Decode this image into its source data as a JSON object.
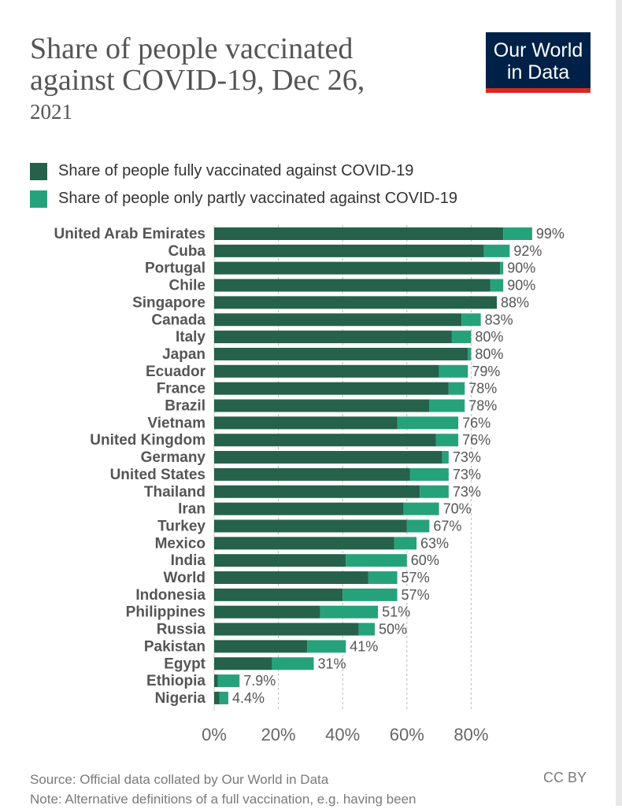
{
  "header": {
    "title_line1": "Share of people vaccinated",
    "title_line2": "against COVID-19, Dec 26,",
    "title_line3": "2021"
  },
  "logo": {
    "line1": "Our World",
    "line2": "in Data"
  },
  "colors": {
    "fully": "#25614b",
    "partly": "#26a27b",
    "logo_bg": "#002147",
    "logo_accent": "#d42b21"
  },
  "legend": [
    {
      "label": "Share of people fully vaccinated against COVID-19",
      "color": "#25614b"
    },
    {
      "label": "Share of people only partly vaccinated against COVID-19",
      "color": "#26a27b"
    }
  ],
  "chart_data": {
    "type": "bar",
    "orientation": "horizontal",
    "stacked": true,
    "xlim": [
      0,
      100
    ],
    "x_ticks": [
      "0%",
      "20%",
      "40%",
      "60%",
      "80%"
    ],
    "x_tick_values": [
      0,
      20,
      40,
      60,
      80
    ],
    "categories": [
      "United Arab Emirates",
      "Cuba",
      "Portugal",
      "Chile",
      "Singapore",
      "Canada",
      "Italy",
      "Japan",
      "Ecuador",
      "France",
      "Brazil",
      "Vietnam",
      "United Kingdom",
      "Germany",
      "United States",
      "Thailand",
      "Iran",
      "Turkey",
      "Mexico",
      "India",
      "World",
      "Indonesia",
      "Philippines",
      "Russia",
      "Pakistan",
      "Egypt",
      "Ethiopia",
      "Nigeria"
    ],
    "series": [
      {
        "name": "Share of people fully vaccinated against COVID-19",
        "values": [
          90,
          84,
          89,
          86,
          88,
          77,
          74,
          79,
          70,
          73,
          67,
          57,
          69,
          71,
          61,
          64,
          59,
          60,
          56,
          41,
          48,
          40,
          33,
          45,
          29,
          18,
          1.1,
          1.6
        ]
      },
      {
        "name": "Share of people only partly vaccinated against COVID-19",
        "values": [
          9,
          8,
          1,
          4,
          0,
          6,
          6,
          1,
          9,
          5,
          11,
          19,
          7,
          2,
          12,
          9,
          11,
          7,
          7,
          19,
          9,
          17,
          18,
          5,
          12,
          13,
          6.8,
          2.8
        ]
      }
    ],
    "totals": [
      "99%",
      "92%",
      "90%",
      "90%",
      "88%",
      "83%",
      "80%",
      "80%",
      "79%",
      "78%",
      "78%",
      "76%",
      "76%",
      "73%",
      "73%",
      "73%",
      "70%",
      "67%",
      "63%",
      "60%",
      "57%",
      "57%",
      "51%",
      "50%",
      "41%",
      "31%",
      "7.9%",
      "4.4%"
    ]
  },
  "footer": {
    "source": "Source: Official data collated by Our World in Data",
    "note": "Note: Alternative definitions of a full vaccination, e.g. having been",
    "license": "CC BY"
  }
}
